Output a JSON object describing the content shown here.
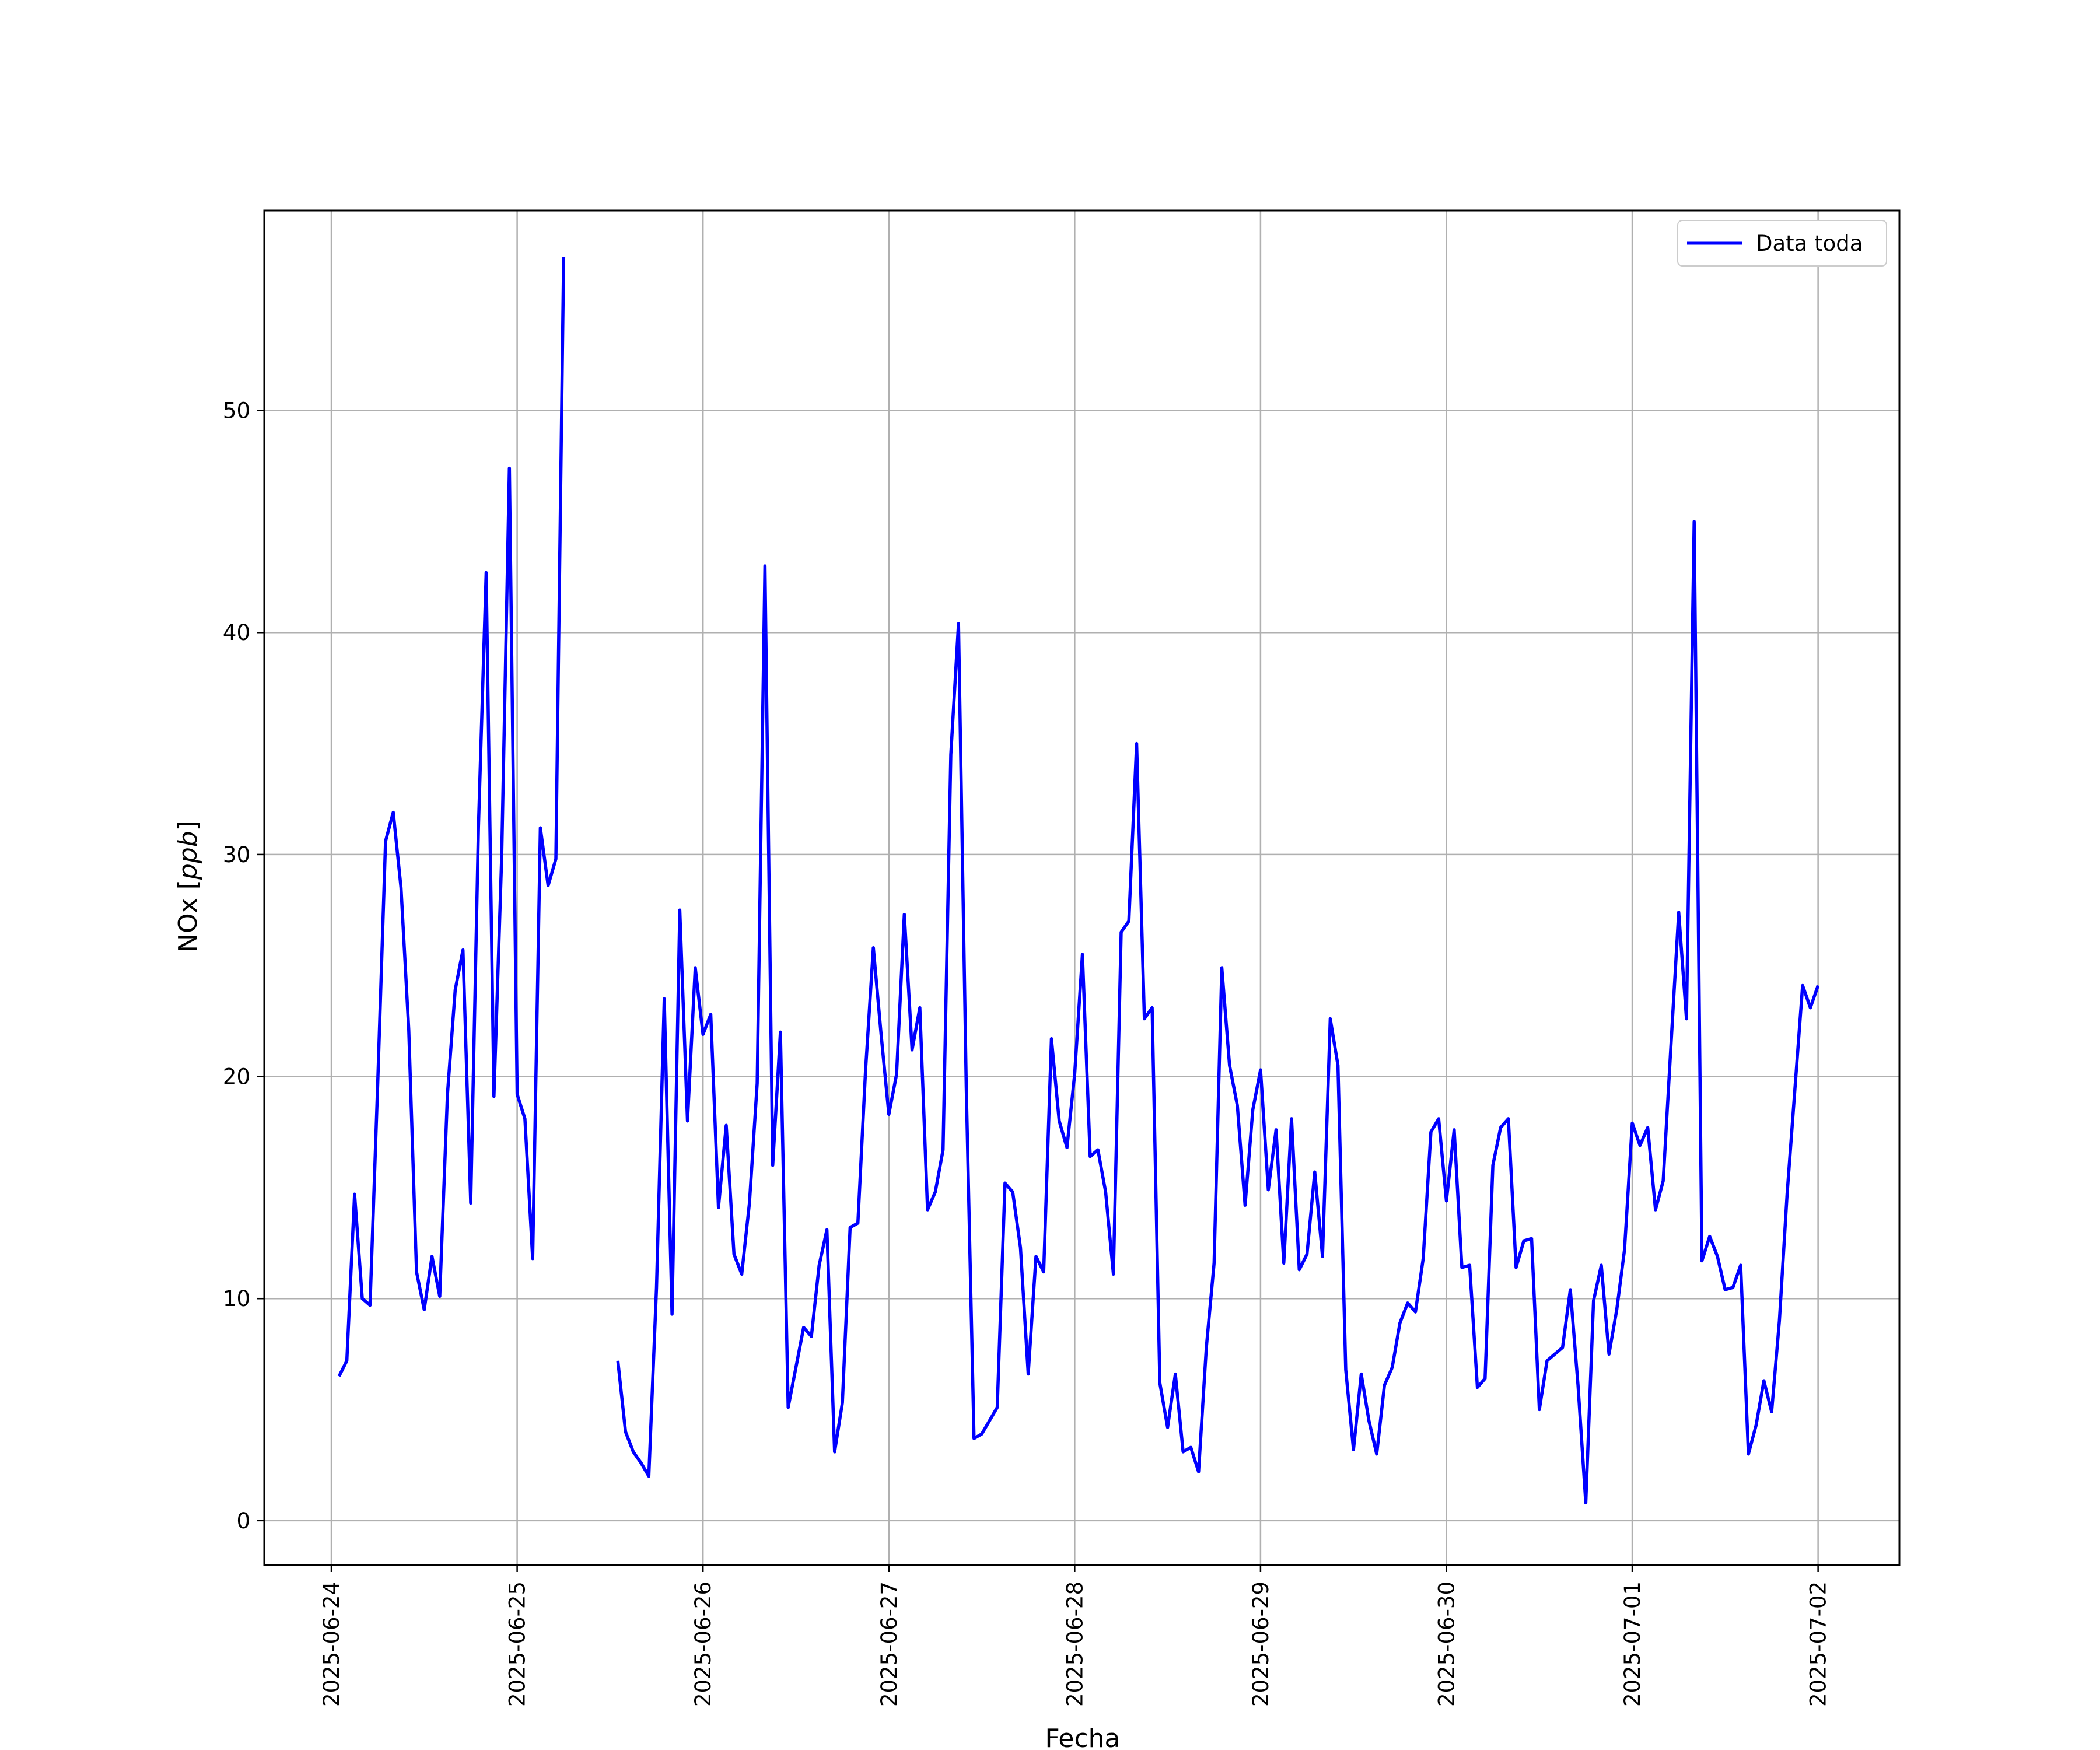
{
  "chart_data": {
    "type": "line",
    "xlabel": "Fecha",
    "ylabel_text": "NOx [",
    "ylabel_unit": "ppb",
    "ylabel_close": "]",
    "ylim": [
      -2,
      59
    ],
    "xlim": [
      "2025-06-23T15:20",
      "2025-07-02T10:30"
    ],
    "grid": true,
    "legend_position": "top-right",
    "yticks": [
      0,
      10,
      20,
      30,
      40,
      50
    ],
    "xticks": [
      "2025-06-24",
      "2025-06-25",
      "2025-06-26",
      "2025-06-27",
      "2025-06-28",
      "2025-06-29",
      "2025-06-30",
      "2025-07-01",
      "2025-07-02"
    ],
    "colors": {
      "line": "#0000ff",
      "grid": "#b0b0b0",
      "axes": "#000000"
    },
    "series": [
      {
        "name": "Data toda",
        "points": [
          [
            "2025-06-24T01:00",
            6.5
          ],
          [
            "2025-06-24T02:00",
            7.2
          ],
          [
            "2025-06-24T03:00",
            14.7
          ],
          [
            "2025-06-24T04:00",
            10.0
          ],
          [
            "2025-06-24T05:00",
            9.7
          ],
          [
            "2025-06-24T06:00",
            19.8
          ],
          [
            "2025-06-24T07:00",
            30.6
          ],
          [
            "2025-06-24T08:00",
            31.9
          ],
          [
            "2025-06-24T09:00",
            28.5
          ],
          [
            "2025-06-24T10:00",
            22.1
          ],
          [
            "2025-06-24T11:00",
            11.2
          ],
          [
            "2025-06-24T12:00",
            9.5
          ],
          [
            "2025-06-24T13:00",
            11.9
          ],
          [
            "2025-06-24T14:00",
            10.1
          ],
          [
            "2025-06-24T15:00",
            19.2
          ],
          [
            "2025-06-24T16:00",
            23.9
          ],
          [
            "2025-06-24T17:00",
            25.7
          ],
          [
            "2025-06-24T18:00",
            14.3
          ],
          [
            "2025-06-24T19:00",
            31.2
          ],
          [
            "2025-06-24T20:00",
            42.7
          ],
          [
            "2025-06-24T21:00",
            19.1
          ],
          [
            "2025-06-24T22:00",
            29.9
          ],
          [
            "2025-06-24T23:00",
            47.4
          ],
          [
            "2025-06-25T00:00",
            19.2
          ],
          [
            "2025-06-25T01:00",
            18.1
          ],
          [
            "2025-06-25T02:00",
            11.8
          ],
          [
            "2025-06-25T03:00",
            31.2
          ],
          [
            "2025-06-25T04:00",
            28.6
          ],
          [
            "2025-06-25T05:00",
            29.8
          ],
          [
            "2025-06-25T06:00",
            56.9
          ],
          null,
          [
            "2025-06-25T13:00",
            7.2
          ],
          [
            "2025-06-25T14:00",
            4.0
          ],
          [
            "2025-06-25T15:00",
            3.1
          ],
          [
            "2025-06-25T16:00",
            2.6
          ],
          [
            "2025-06-25T17:00",
            2.0
          ],
          [
            "2025-06-25T18:00",
            10.5
          ],
          [
            "2025-06-25T19:00",
            23.5
          ],
          [
            "2025-06-25T20:00",
            9.3
          ],
          [
            "2025-06-25T21:00",
            27.5
          ],
          [
            "2025-06-25T22:00",
            18.0
          ],
          [
            "2025-06-25T23:00",
            24.9
          ],
          [
            "2025-06-26T00:00",
            21.9
          ],
          [
            "2025-06-26T01:00",
            22.8
          ],
          [
            "2025-06-26T02:00",
            14.1
          ],
          [
            "2025-06-26T03:00",
            17.8
          ],
          [
            "2025-06-26T04:00",
            12.0
          ],
          [
            "2025-06-26T05:00",
            11.1
          ],
          [
            "2025-06-26T06:00",
            14.3
          ],
          [
            "2025-06-26T07:00",
            19.7
          ],
          [
            "2025-06-26T08:00",
            43.0
          ],
          [
            "2025-06-26T09:00",
            16.0
          ],
          [
            "2025-06-26T10:00",
            22.0
          ],
          [
            "2025-06-26T11:00",
            5.1
          ],
          [
            "2025-06-26T12:00",
            6.9
          ],
          [
            "2025-06-26T13:00",
            8.7
          ],
          [
            "2025-06-26T14:00",
            8.3
          ],
          [
            "2025-06-26T15:00",
            11.5
          ],
          [
            "2025-06-26T16:00",
            13.1
          ],
          [
            "2025-06-26T17:00",
            3.1
          ],
          [
            "2025-06-26T18:00",
            5.3
          ],
          [
            "2025-06-26T19:00",
            13.2
          ],
          [
            "2025-06-26T20:00",
            13.4
          ],
          [
            "2025-06-26T21:00",
            20.3
          ],
          [
            "2025-06-26T22:00",
            25.8
          ],
          [
            "2025-06-26T23:00",
            21.9
          ],
          [
            "2025-06-27T00:00",
            18.3
          ],
          [
            "2025-06-27T01:00",
            20.1
          ],
          [
            "2025-06-27T02:00",
            27.3
          ],
          [
            "2025-06-27T03:00",
            21.2
          ],
          [
            "2025-06-27T04:00",
            23.1
          ],
          [
            "2025-06-27T05:00",
            14.0
          ],
          [
            "2025-06-27T06:00",
            14.8
          ],
          [
            "2025-06-27T07:00",
            16.7
          ],
          [
            "2025-06-27T08:00",
            34.5
          ],
          [
            "2025-06-27T09:00",
            40.4
          ],
          [
            "2025-06-27T10:00",
            19.5
          ],
          [
            "2025-06-27T11:00",
            3.7
          ],
          [
            "2025-06-27T12:00",
            3.9
          ],
          [
            "2025-06-27T13:00",
            4.5
          ],
          [
            "2025-06-27T14:00",
            5.1
          ],
          [
            "2025-06-27T15:00",
            15.2
          ],
          [
            "2025-06-27T16:00",
            14.8
          ],
          [
            "2025-06-27T17:00",
            12.3
          ],
          [
            "2025-06-27T18:00",
            6.6
          ],
          [
            "2025-06-27T19:00",
            11.9
          ],
          [
            "2025-06-27T20:00",
            11.2
          ],
          [
            "2025-06-27T21:00",
            21.7
          ],
          [
            "2025-06-27T22:00",
            18.0
          ],
          [
            "2025-06-27T23:00",
            16.8
          ],
          [
            "2025-06-28T00:00",
            20.1
          ],
          [
            "2025-06-28T01:00",
            25.5
          ],
          [
            "2025-06-28T02:00",
            16.4
          ],
          [
            "2025-06-28T03:00",
            16.7
          ],
          [
            "2025-06-28T04:00",
            14.8
          ],
          [
            "2025-06-28T05:00",
            11.1
          ],
          [
            "2025-06-28T06:00",
            26.5
          ],
          [
            "2025-06-28T07:00",
            27.0
          ],
          [
            "2025-06-28T08:00",
            35.0
          ],
          [
            "2025-06-28T09:00",
            22.6
          ],
          [
            "2025-06-28T10:00",
            23.1
          ],
          [
            "2025-06-28T11:00",
            6.2
          ],
          [
            "2025-06-28T12:00",
            4.2
          ],
          [
            "2025-06-28T13:00",
            6.6
          ],
          [
            "2025-06-28T14:00",
            3.1
          ],
          [
            "2025-06-28T15:00",
            3.3
          ],
          [
            "2025-06-28T16:00",
            2.2
          ],
          [
            "2025-06-28T17:00",
            7.8
          ],
          [
            "2025-06-28T18:00",
            11.6
          ],
          [
            "2025-06-28T19:00",
            24.9
          ],
          [
            "2025-06-28T20:00",
            20.5
          ],
          [
            "2025-06-28T21:00",
            18.7
          ],
          [
            "2025-06-28T22:00",
            14.2
          ],
          [
            "2025-06-28T23:00",
            18.5
          ],
          [
            "2025-06-29T00:00",
            20.3
          ],
          [
            "2025-06-29T01:00",
            14.9
          ],
          [
            "2025-06-29T02:00",
            17.6
          ],
          [
            "2025-06-29T03:00",
            11.6
          ],
          [
            "2025-06-29T04:00",
            18.1
          ],
          [
            "2025-06-29T05:00",
            11.3
          ],
          [
            "2025-06-29T06:00",
            12.0
          ],
          [
            "2025-06-29T07:00",
            15.7
          ],
          [
            "2025-06-29T08:00",
            11.9
          ],
          [
            "2025-06-29T09:00",
            22.6
          ],
          [
            "2025-06-29T10:00",
            20.5
          ],
          [
            "2025-06-29T11:00",
            6.8
          ],
          [
            "2025-06-29T12:00",
            3.2
          ],
          [
            "2025-06-29T13:00",
            6.6
          ],
          [
            "2025-06-29T14:00",
            4.5
          ],
          [
            "2025-06-29T15:00",
            3.0
          ],
          [
            "2025-06-29T16:00",
            6.1
          ],
          [
            "2025-06-29T17:00",
            6.9
          ],
          [
            "2025-06-29T18:00",
            8.9
          ],
          [
            "2025-06-29T19:00",
            9.8
          ],
          [
            "2025-06-29T20:00",
            9.4
          ],
          [
            "2025-06-29T21:00",
            11.8
          ],
          [
            "2025-06-29T22:00",
            17.5
          ],
          [
            "2025-06-29T23:00",
            18.1
          ],
          [
            "2025-06-30T00:00",
            14.4
          ],
          [
            "2025-06-30T01:00",
            17.6
          ],
          [
            "2025-06-30T02:00",
            11.4
          ],
          [
            "2025-06-30T03:00",
            11.5
          ],
          [
            "2025-06-30T04:00",
            6.0
          ],
          [
            "2025-06-30T05:00",
            6.4
          ],
          [
            "2025-06-30T06:00",
            16.0
          ],
          [
            "2025-06-30T07:00",
            17.7
          ],
          [
            "2025-06-30T08:00",
            18.1
          ],
          [
            "2025-06-30T09:00",
            11.4
          ],
          [
            "2025-06-30T10:00",
            12.6
          ],
          [
            "2025-06-30T11:00",
            12.7
          ],
          [
            "2025-06-30T12:00",
            5.0
          ],
          [
            "2025-06-30T13:00",
            7.2
          ],
          [
            "2025-06-30T14:00",
            7.5
          ],
          [
            "2025-06-30T15:00",
            7.8
          ],
          [
            "2025-06-30T16:00",
            10.4
          ],
          [
            "2025-06-30T17:00",
            6.1
          ],
          [
            "2025-06-30T18:00",
            0.8
          ],
          [
            "2025-06-30T19:00",
            9.9
          ],
          [
            "2025-06-30T20:00",
            11.5
          ],
          [
            "2025-06-30T21:00",
            7.5
          ],
          [
            "2025-06-30T22:00",
            9.5
          ],
          [
            "2025-06-30T23:00",
            12.2
          ],
          [
            "2025-07-01T00:00",
            17.9
          ],
          [
            "2025-07-01T01:00",
            16.9
          ],
          [
            "2025-07-01T02:00",
            17.7
          ],
          [
            "2025-07-01T03:00",
            14.0
          ],
          [
            "2025-07-01T04:00",
            15.3
          ],
          [
            "2025-07-01T05:00",
            21.4
          ],
          [
            "2025-07-01T06:00",
            27.4
          ],
          [
            "2025-07-01T07:00",
            22.6
          ],
          [
            "2025-07-01T08:00",
            45.0
          ],
          [
            "2025-07-01T09:00",
            11.7
          ],
          [
            "2025-07-01T10:00",
            12.8
          ],
          [
            "2025-07-01T11:00",
            11.9
          ],
          [
            "2025-07-01T12:00",
            10.4
          ],
          [
            "2025-07-01T13:00",
            10.5
          ],
          [
            "2025-07-01T14:00",
            11.5
          ],
          [
            "2025-07-01T15:00",
            3.0
          ],
          [
            "2025-07-01T16:00",
            4.3
          ],
          [
            "2025-07-01T17:00",
            6.3
          ],
          [
            "2025-07-01T18:00",
            4.9
          ],
          [
            "2025-07-01T19:00",
            9.0
          ],
          [
            "2025-07-01T20:00",
            14.7
          ],
          [
            "2025-07-01T21:00",
            19.4
          ],
          [
            "2025-07-01T22:00",
            24.1
          ],
          [
            "2025-07-01T23:00",
            23.1
          ],
          [
            "2025-07-02T00:00",
            24.1
          ]
        ]
      }
    ]
  }
}
